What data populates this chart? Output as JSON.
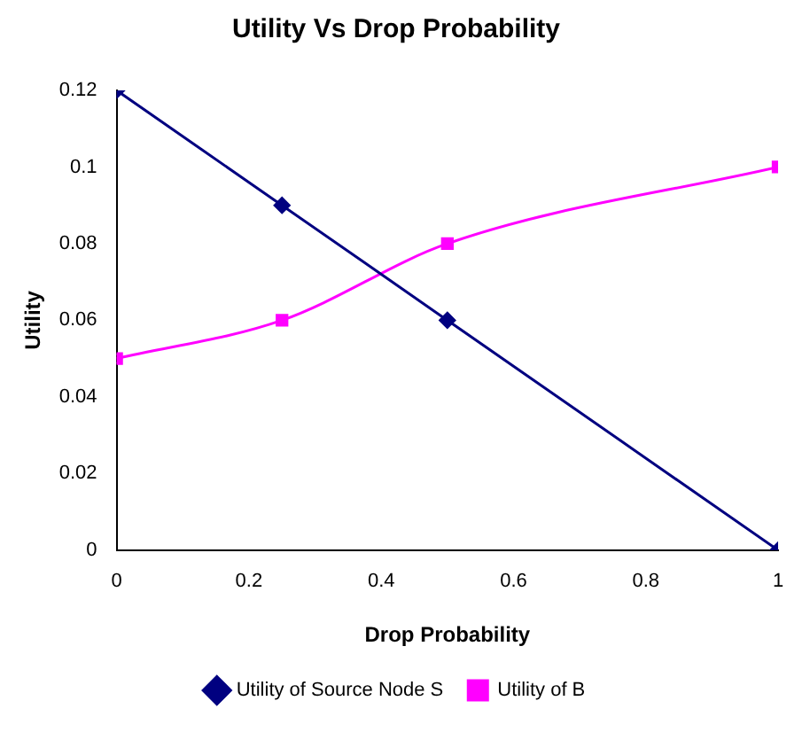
{
  "chart_data": {
    "type": "line",
    "title": "Utility Vs Drop Probability",
    "xlabel": "Drop Probability",
    "ylabel": "Utility",
    "x": [
      0,
      0.25,
      0.5,
      1
    ],
    "series": [
      {
        "name": "Utility of Source Node S",
        "color": "#000080",
        "values": [
          0.12,
          0.09,
          0.06,
          0
        ],
        "marker": "diamond"
      },
      {
        "name": "Utility of B",
        "color": "#ff00ff",
        "values": [
          0.05,
          0.06,
          0.08,
          0.1
        ],
        "marker": "square"
      }
    ],
    "xlim": [
      0,
      1
    ],
    "xticks": [
      0,
      0.2,
      0.4,
      0.6,
      0.8,
      1
    ],
    "ylim": [
      0,
      0.12
    ],
    "yticks": [
      0,
      0.02,
      0.04,
      0.06,
      0.08,
      0.1,
      0.12
    ],
    "grid": false,
    "legend": "bottom"
  }
}
